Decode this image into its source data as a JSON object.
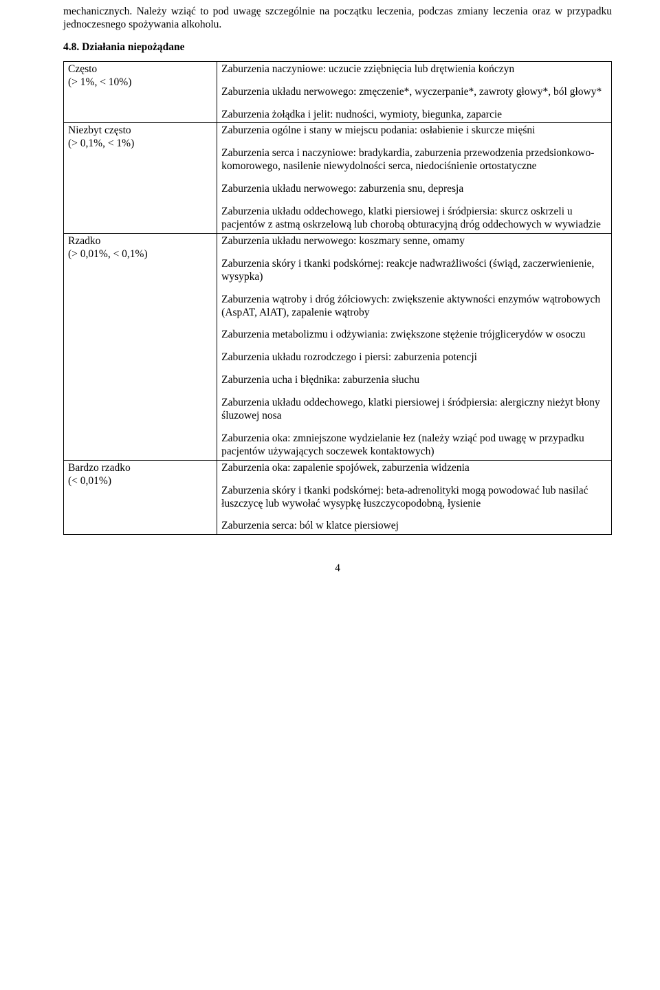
{
  "intro_para": "mechanicznych. Należy wziąć to pod uwagę szczególnie na początku leczenia, podczas zmiany leczenia oraz w przypadku jednoczesnego spożywania alkoholu.",
  "section_heading": "4.8. Działania niepożądane",
  "freq": {
    "often_label": "Często",
    "often_range": "(> 1%, < 10%)",
    "uncommon_label": "Niezbyt często",
    "uncommon_range": "(> 0,1%, < 1%)",
    "rare_label": "Rzadko",
    "rare_range": "(> 0,01%, < 0,1%)",
    "very_rare_label": "Bardzo rzadko",
    "very_rare_range": "(< 0,01%)"
  },
  "cells": {
    "often": {
      "p1": "Zaburzenia naczyniowe: uczucie zziębnięcia lub drętwienia kończyn",
      "p2": "Zaburzenia układu nerwowego: zmęczenie*, wyczerpanie*, zawroty głowy*, ból głowy*",
      "p3": "Zaburzenia żołądka i jelit: nudności, wymioty, biegunka, zaparcie"
    },
    "uncommon": {
      "p1": "Zaburzenia ogólne i stany w miejscu podania: osłabienie i skurcze mięśni",
      "p2": "Zaburzenia serca i naczyniowe: bradykardia, zaburzenia przewodzenia przedsionkowo-komorowego, nasilenie niewydolności serca, niedociśnienie ortostatyczne",
      "p3": "Zaburzenia układu nerwowego: zaburzenia snu, depresja",
      "p4": "Zaburzenia układu oddechowego, klatki piersiowej i śródpiersia: skurcz oskrzeli u pacjentów z astmą oskrzelową lub chorobą obturacyjną dróg oddechowych w wywiadzie"
    },
    "rare": {
      "p1": "Zaburzenia układu nerwowego: koszmary senne, omamy",
      "p2": "Zaburzenia skóry i tkanki podskórnej: reakcje nadwrażliwości (świąd, zaczerwienienie, wysypka)",
      "p3": "Zaburzenia wątroby i dróg żółciowych: zwiększenie aktywności enzymów wątrobowych (AspAT, AlAT), zapalenie wątroby",
      "p4": "Zaburzenia metabolizmu i odżywiania: zwiększone stężenie trójglicerydów w osoczu",
      "p5": "Zaburzenia układu rozrodczego i piersi: zaburzenia potencji",
      "p6": "Zaburzenia ucha i błędnika: zaburzenia słuchu",
      "p7": "Zaburzenia układu oddechowego, klatki piersiowej i śródpiersia: alergiczny nieżyt błony śluzowej nosa",
      "p8": "Zaburzenia oka: zmniejszone wydzielanie łez (należy wziąć pod uwagę w przypadku pacjentów używających soczewek kontaktowych)"
    },
    "very_rare": {
      "p1": "Zaburzenia oka: zapalenie spojówek, zaburzenia widzenia",
      "p2": "Zaburzenia skóry i tkanki podskórnej: beta-adrenolityki mogą powodować lub nasilać łuszczycę lub wywołać wysypkę łuszczycopodobną, łysienie",
      "p3": "Zaburzenia serca: ból w klatce piersiowej"
    }
  },
  "page_number": "4"
}
